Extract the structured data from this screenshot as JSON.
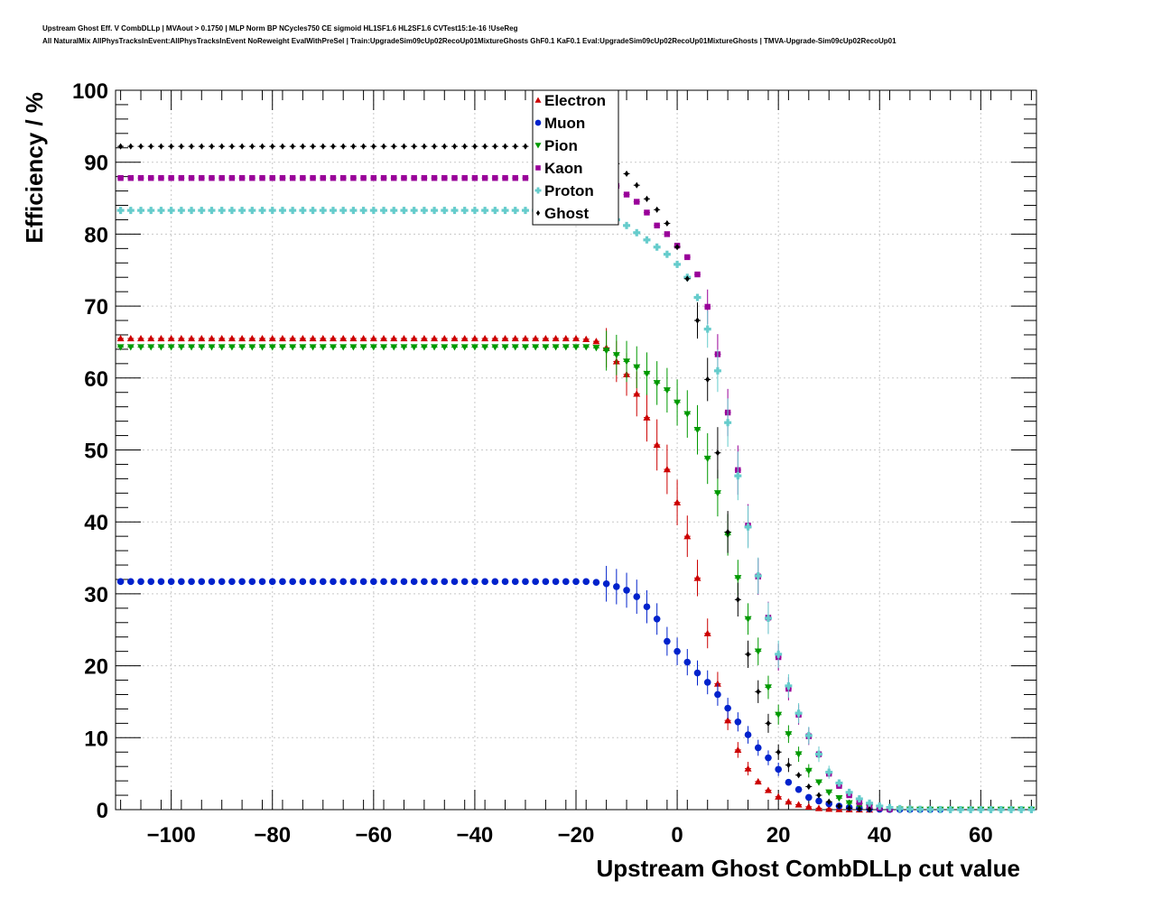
{
  "header": {
    "line1": "Upstream Ghost Eff. V CombDLLp | MVAout > 0.1750 | MLP Norm BP NCycles750 CE sigmoid HL1SF1.6 HL2SF1.6 CVTest15:1e-16 !UseReg",
    "line2": "All NaturalMix AllPhysTracksInEvent:AllPhysTracksInEvent NoReweight EvalWithPreSel | Train:UpgradeSim09cUp02RecoUp01MixtureGhosts GhF0.1 KaF0.1 Eval:UpgradeSim09cUp02RecoUp01MixtureGhosts | TMVA-Upgrade-Sim09cUp02RecoUp01"
  },
  "chart_data": {
    "type": "scatter",
    "xlabel": "Upstream Ghost CombDLLp cut value",
    "ylabel": "Efficiency / %",
    "xlim": [
      -111,
      71
    ],
    "ylim": [
      0,
      100
    ],
    "xticks": [
      -100,
      -80,
      -60,
      -40,
      -20,
      0,
      20,
      40,
      60
    ],
    "xtick_labels": [
      "−100",
      "−80",
      "−60",
      "−40",
      "−20",
      "0",
      "20",
      "40",
      "60"
    ],
    "yticks": [
      0,
      10,
      20,
      30,
      40,
      50,
      60,
      70,
      80,
      90,
      100
    ],
    "ytick_labels": [
      "0",
      "10",
      "20",
      "30",
      "40",
      "50",
      "60",
      "70",
      "80",
      "90",
      "100"
    ],
    "grid": true,
    "legend_position": "top-center",
    "series": [
      {
        "name": "Electron",
        "color": "#cc0000",
        "marker": "triangle-up",
        "x": [
          -110,
          -108,
          -106,
          -104,
          -102,
          -100,
          -98,
          -96,
          -94,
          -92,
          -90,
          -88,
          -86,
          -84,
          -82,
          -80,
          -78,
          -76,
          -74,
          -72,
          -70,
          -68,
          -66,
          -64,
          -62,
          -60,
          -58,
          -56,
          -54,
          -52,
          -50,
          -48,
          -46,
          -44,
          -42,
          -40,
          -38,
          -36,
          -34,
          -32,
          -30,
          -28,
          -26,
          -24,
          -22,
          -20,
          -18,
          -16,
          -14,
          -12,
          -10,
          -8,
          -6,
          -4,
          -2,
          0,
          2,
          4,
          6,
          8,
          10,
          12,
          14,
          16,
          18,
          20,
          22,
          24,
          26,
          28,
          30,
          32,
          34,
          36,
          38
        ],
        "y": [
          65.5,
          65.5,
          65.5,
          65.5,
          65.5,
          65.5,
          65.5,
          65.5,
          65.5,
          65.5,
          65.5,
          65.5,
          65.5,
          65.5,
          65.5,
          65.5,
          65.5,
          65.5,
          65.5,
          65.5,
          65.5,
          65.5,
          65.5,
          65.5,
          65.5,
          65.5,
          65.5,
          65.5,
          65.5,
          65.5,
          65.5,
          65.5,
          65.5,
          65.5,
          65.5,
          65.5,
          65.5,
          65.5,
          65.5,
          65.5,
          65.5,
          65.5,
          65.5,
          65.5,
          65.5,
          65.5,
          65.4,
          65.1,
          64.2,
          62.3,
          60.5,
          57.8,
          54.5,
          50.7,
          47.3,
          42.7,
          38.0,
          32.2,
          24.5,
          17.5,
          12.4,
          8.3,
          5.7,
          3.9,
          2.7,
          1.8,
          1.1,
          0.7,
          0.4,
          0.2,
          0.1,
          0.05,
          0.02,
          0.01,
          0.0
        ]
      },
      {
        "name": "Muon",
        "color": "#0022cc",
        "marker": "circle",
        "x": [
          -110,
          -108,
          -106,
          -104,
          -102,
          -100,
          -98,
          -96,
          -94,
          -92,
          -90,
          -88,
          -86,
          -84,
          -82,
          -80,
          -78,
          -76,
          -74,
          -72,
          -70,
          -68,
          -66,
          -64,
          -62,
          -60,
          -58,
          -56,
          -54,
          -52,
          -50,
          -48,
          -46,
          -44,
          -42,
          -40,
          -38,
          -36,
          -34,
          -32,
          -30,
          -28,
          -26,
          -24,
          -22,
          -20,
          -18,
          -16,
          -14,
          -12,
          -10,
          -8,
          -6,
          -4,
          -2,
          0,
          2,
          4,
          6,
          8,
          10,
          12,
          14,
          16,
          18,
          20,
          22,
          24,
          26,
          28,
          30,
          32,
          34,
          36,
          38,
          40,
          42,
          44,
          46,
          48,
          50,
          52
        ],
        "y": [
          31.7,
          31.7,
          31.7,
          31.7,
          31.7,
          31.7,
          31.7,
          31.7,
          31.7,
          31.7,
          31.7,
          31.7,
          31.7,
          31.7,
          31.7,
          31.7,
          31.7,
          31.7,
          31.7,
          31.7,
          31.7,
          31.7,
          31.7,
          31.7,
          31.7,
          31.7,
          31.7,
          31.7,
          31.7,
          31.7,
          31.7,
          31.7,
          31.7,
          31.7,
          31.7,
          31.7,
          31.7,
          31.7,
          31.7,
          31.7,
          31.7,
          31.7,
          31.7,
          31.7,
          31.7,
          31.7,
          31.7,
          31.6,
          31.4,
          31.0,
          30.5,
          29.6,
          28.2,
          26.5,
          23.4,
          22.0,
          20.5,
          19.0,
          17.7,
          16.0,
          14.1,
          12.2,
          10.4,
          8.6,
          7.2,
          5.6,
          3.8,
          2.8,
          1.7,
          1.2,
          0.8,
          0.5,
          0.3,
          0.2,
          0.1,
          0.05,
          0.03,
          0.02,
          0.01,
          0.0,
          0.0,
          0.0
        ]
      },
      {
        "name": "Pion",
        "color": "#009900",
        "marker": "triangle-down",
        "x": [
          -110,
          -108,
          -106,
          -104,
          -102,
          -100,
          -98,
          -96,
          -94,
          -92,
          -90,
          -88,
          -86,
          -84,
          -82,
          -80,
          -78,
          -76,
          -74,
          -72,
          -70,
          -68,
          -66,
          -64,
          -62,
          -60,
          -58,
          -56,
          -54,
          -52,
          -50,
          -48,
          -46,
          -44,
          -42,
          -40,
          -38,
          -36,
          -34,
          -32,
          -30,
          -28,
          -26,
          -24,
          -22,
          -20,
          -18,
          -16,
          -14,
          -12,
          -10,
          -8,
          -6,
          -4,
          -2,
          0,
          2,
          4,
          6,
          8,
          10,
          12,
          14,
          16,
          18,
          20,
          22,
          24,
          26,
          28,
          30,
          32,
          34,
          36,
          38,
          40,
          42,
          44,
          46,
          48,
          50,
          52,
          54,
          56,
          58,
          60,
          62,
          64,
          66,
          68,
          70
        ],
        "y": [
          64.3,
          64.3,
          64.3,
          64.3,
          64.3,
          64.3,
          64.3,
          64.3,
          64.3,
          64.3,
          64.3,
          64.3,
          64.3,
          64.3,
          64.3,
          64.3,
          64.3,
          64.3,
          64.3,
          64.3,
          64.3,
          64.3,
          64.3,
          64.3,
          64.3,
          64.3,
          64.3,
          64.3,
          64.3,
          64.3,
          64.3,
          64.3,
          64.3,
          64.3,
          64.3,
          64.3,
          64.3,
          64.3,
          64.3,
          64.3,
          64.3,
          64.3,
          64.3,
          64.3,
          64.3,
          64.3,
          64.3,
          64.2,
          63.8,
          63.2,
          62.3,
          61.5,
          60.6,
          59.3,
          58.3,
          56.6,
          55.0,
          52.8,
          48.8,
          44.0,
          38.2,
          32.2,
          26.5,
          22.0,
          17.0,
          13.2,
          10.5,
          7.7,
          5.4,
          3.8,
          2.4,
          1.6,
          0.9,
          0.5,
          0.3,
          0.15,
          0.08,
          0.04,
          0.02,
          0.01,
          0.0,
          0.0,
          0.0,
          0.0,
          0.0,
          0.0,
          0.0,
          0.0,
          0.0,
          0.0,
          0.0
        ]
      },
      {
        "name": "Kaon",
        "color": "#990099",
        "marker": "square",
        "x": [
          -110,
          -108,
          -106,
          -104,
          -102,
          -100,
          -98,
          -96,
          -94,
          -92,
          -90,
          -88,
          -86,
          -84,
          -82,
          -80,
          -78,
          -76,
          -74,
          -72,
          -70,
          -68,
          -66,
          -64,
          -62,
          -60,
          -58,
          -56,
          -54,
          -52,
          -50,
          -48,
          -46,
          -44,
          -42,
          -40,
          -38,
          -36,
          -34,
          -32,
          -30,
          -28,
          -26,
          -24,
          -22,
          -20,
          -18,
          -16,
          -14,
          -12,
          -10,
          -8,
          -6,
          -4,
          -2,
          0,
          2,
          4,
          6,
          8,
          10,
          12,
          14,
          16,
          18,
          20,
          22,
          24,
          26,
          28,
          30,
          32,
          34,
          36,
          38,
          40,
          42
        ],
        "y": [
          87.8,
          87.8,
          87.8,
          87.8,
          87.8,
          87.8,
          87.8,
          87.8,
          87.8,
          87.8,
          87.8,
          87.8,
          87.8,
          87.8,
          87.8,
          87.8,
          87.8,
          87.8,
          87.8,
          87.8,
          87.8,
          87.8,
          87.8,
          87.8,
          87.8,
          87.8,
          87.8,
          87.8,
          87.8,
          87.8,
          87.8,
          87.8,
          87.8,
          87.8,
          87.8,
          87.8,
          87.8,
          87.8,
          87.8,
          87.8,
          87.8,
          87.8,
          87.8,
          87.8,
          87.8,
          87.8,
          87.8,
          87.7,
          87.4,
          86.7,
          85.5,
          84.5,
          83.0,
          81.2,
          80.0,
          78.4,
          76.8,
          74.4,
          69.9,
          63.3,
          55.2,
          47.2,
          39.5,
          32.4,
          26.7,
          21.2,
          16.8,
          13.2,
          10.2,
          7.7,
          5.0,
          3.3,
          2.0,
          1.0,
          0.5,
          0.2,
          0.05
        ]
      },
      {
        "name": "Proton",
        "color": "#66cccc",
        "marker": "cross",
        "x": [
          -110,
          -108,
          -106,
          -104,
          -102,
          -100,
          -98,
          -96,
          -94,
          -92,
          -90,
          -88,
          -86,
          -84,
          -82,
          -80,
          -78,
          -76,
          -74,
          -72,
          -70,
          -68,
          -66,
          -64,
          -62,
          -60,
          -58,
          -56,
          -54,
          -52,
          -50,
          -48,
          -46,
          -44,
          -42,
          -40,
          -38,
          -36,
          -34,
          -32,
          -30,
          -28,
          -26,
          -24,
          -22,
          -20,
          -18,
          -16,
          -14,
          -12,
          -10,
          -8,
          -6,
          -4,
          -2,
          0,
          2,
          4,
          6,
          8,
          10,
          12,
          14,
          16,
          18,
          20,
          22,
          24,
          26,
          28,
          30,
          32,
          34,
          36,
          38,
          40,
          42,
          44,
          46,
          48,
          50,
          52,
          54,
          56,
          58,
          60,
          62,
          64,
          66,
          68,
          70
        ],
        "y": [
          83.3,
          83.3,
          83.3,
          83.3,
          83.3,
          83.3,
          83.3,
          83.3,
          83.3,
          83.3,
          83.3,
          83.3,
          83.3,
          83.3,
          83.3,
          83.3,
          83.3,
          83.3,
          83.3,
          83.3,
          83.3,
          83.3,
          83.3,
          83.3,
          83.3,
          83.3,
          83.3,
          83.3,
          83.3,
          83.3,
          83.3,
          83.3,
          83.3,
          83.3,
          83.3,
          83.3,
          83.3,
          83.3,
          83.3,
          83.3,
          83.3,
          83.3,
          83.3,
          83.3,
          83.3,
          83.3,
          83.3,
          83.2,
          82.8,
          82.0,
          81.2,
          80.2,
          79.2,
          78.2,
          77.2,
          75.8,
          74.0,
          71.2,
          66.8,
          61.0,
          53.8,
          46.4,
          39.3,
          32.5,
          26.6,
          21.6,
          17.2,
          13.4,
          10.3,
          7.7,
          5.2,
          3.7,
          2.4,
          1.5,
          0.9,
          0.5,
          0.3,
          0.15,
          0.08,
          0.04,
          0.02,
          0.01,
          0.0,
          0.0,
          0.0,
          0.0,
          0.0,
          0.0,
          0.0,
          0.0,
          0.0
        ]
      },
      {
        "name": "Ghost",
        "color": "#000000",
        "marker": "diamond",
        "x": [
          -110,
          -108,
          -106,
          -104,
          -102,
          -100,
          -98,
          -96,
          -94,
          -92,
          -90,
          -88,
          -86,
          -84,
          -82,
          -80,
          -78,
          -76,
          -74,
          -72,
          -70,
          -68,
          -66,
          -64,
          -62,
          -60,
          -58,
          -56,
          -54,
          -52,
          -50,
          -48,
          -46,
          -44,
          -42,
          -40,
          -38,
          -36,
          -34,
          -32,
          -30,
          -28,
          -26,
          -24,
          -22,
          -20,
          -18,
          -16,
          -14,
          -12,
          -10,
          -8,
          -6,
          -4,
          -2,
          0,
          2,
          4,
          6,
          8,
          10,
          12,
          14,
          16,
          18,
          20,
          22,
          24,
          26,
          28,
          30,
          32,
          34,
          36,
          38
        ],
        "y": [
          92.2,
          92.2,
          92.2,
          92.2,
          92.2,
          92.2,
          92.2,
          92.2,
          92.2,
          92.2,
          92.2,
          92.2,
          92.2,
          92.2,
          92.2,
          92.2,
          92.2,
          92.2,
          92.2,
          92.2,
          92.2,
          92.2,
          92.2,
          92.2,
          92.2,
          92.2,
          92.2,
          92.2,
          92.2,
          92.2,
          92.2,
          92.2,
          92.2,
          92.2,
          92.2,
          92.2,
          92.2,
          92.2,
          92.2,
          92.2,
          92.2,
          92.2,
          92.2,
          92.2,
          92.2,
          92.2,
          92.1,
          91.7,
          90.9,
          89.8,
          88.4,
          86.8,
          84.9,
          83.4,
          81.5,
          78.2,
          73.8,
          68.0,
          59.8,
          49.6,
          38.6,
          29.2,
          21.6,
          16.4,
          12.0,
          8.0,
          6.2,
          4.8,
          3.2,
          2.0,
          1.1,
          0.5,
          0.2,
          0.08,
          0.02
        ]
      }
    ]
  }
}
